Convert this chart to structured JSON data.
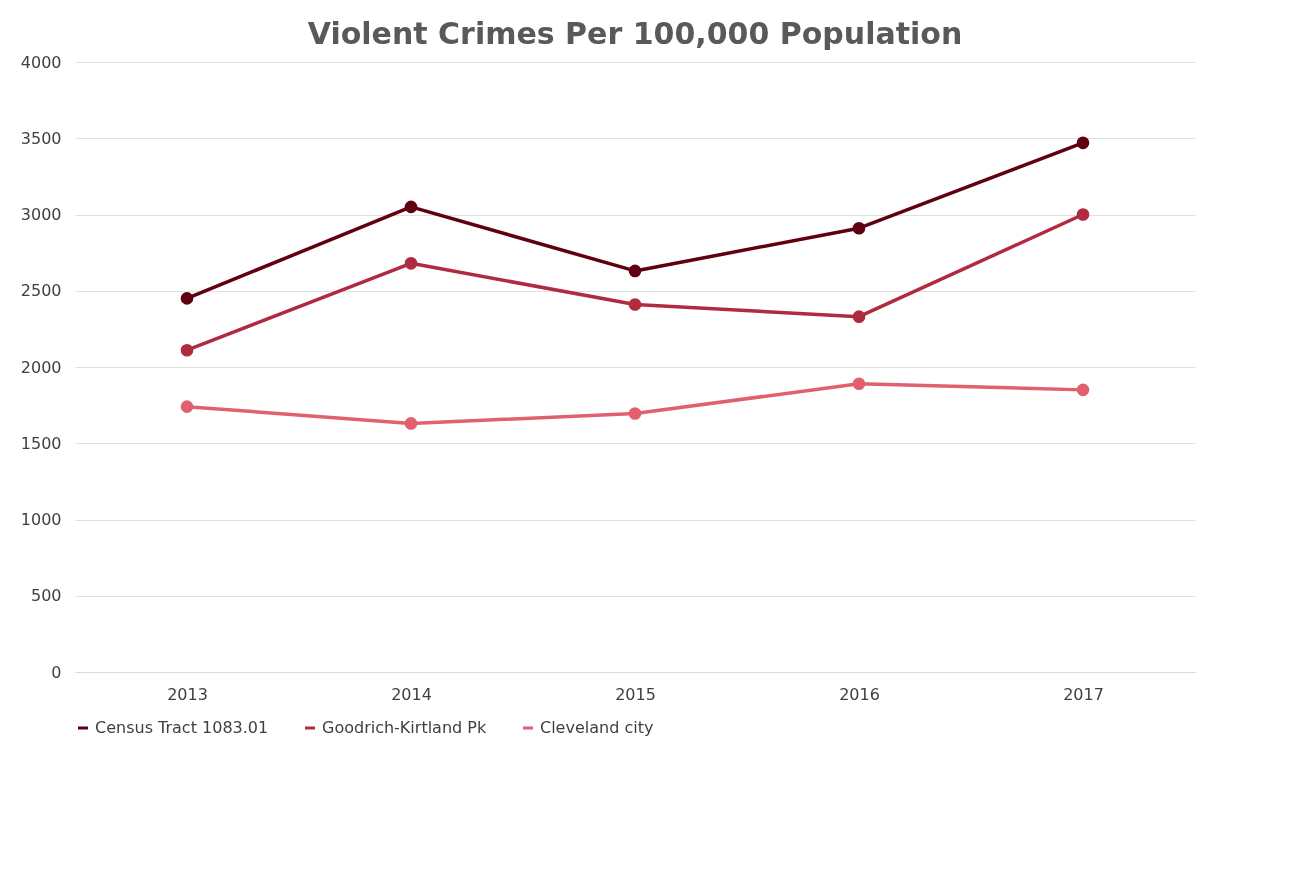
{
  "chart_data": {
    "type": "line",
    "title": "Violent Crimes Per 100,000 Population",
    "categories": [
      "2013",
      "2014",
      "2015",
      "2016",
      "2017"
    ],
    "series": [
      {
        "name": "Census Tract 1083.01",
        "color": "#600010",
        "values": [
          2450,
          3050,
          2630,
          2910,
          3470
        ]
      },
      {
        "name": "Goodrich-Kirtland Pk",
        "color": "#b02a40",
        "values": [
          2110,
          2680,
          2410,
          2330,
          3000
        ]
      },
      {
        "name": "Cleveland city",
        "color": "#e06070",
        "values": [
          1740,
          1630,
          1695,
          1890,
          1850
        ]
      }
    ],
    "ylim": [
      0,
      4000
    ],
    "yticks": [
      0,
      500,
      1000,
      1500,
      2000,
      2500,
      3000,
      3500,
      4000
    ],
    "grid": "y",
    "legend": "bottom",
    "marker": "circle",
    "line_style": "solid"
  }
}
